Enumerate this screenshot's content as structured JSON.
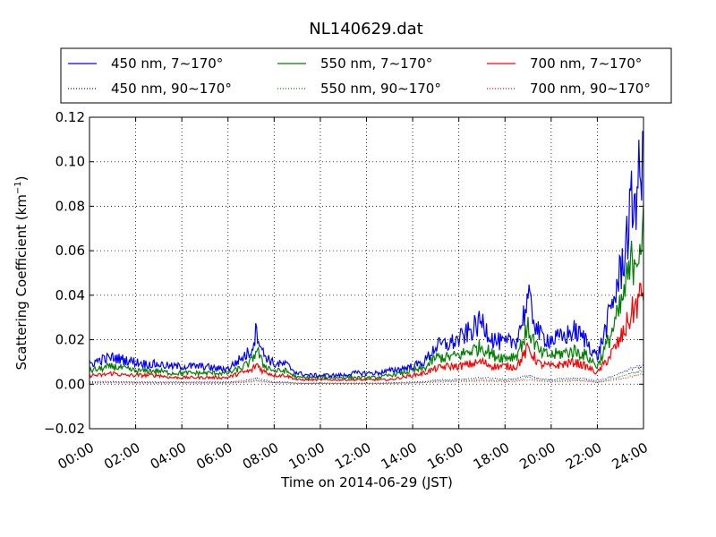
{
  "chart_data": {
    "type": "line",
    "title": "NL140629.dat",
    "xlabel": "Time on 2014-06-29 (JST)",
    "ylabel": "Scattering Coefficient (km",
    "ylabel_exp": "−1",
    "ylabel_close": ")",
    "xlim": [
      "00:00",
      "24:00"
    ],
    "ylim": [
      -0.02,
      0.12
    ],
    "grid": true,
    "legend_position": "top",
    "x_ticks": [
      "00:00",
      "02:00",
      "04:00",
      "06:00",
      "08:00",
      "10:00",
      "12:00",
      "14:00",
      "16:00",
      "18:00",
      "20:00",
      "22:00",
      "24:00"
    ],
    "y_ticks": [
      "−0.02",
      "0.00",
      "0.02",
      "0.04",
      "0.06",
      "0.08",
      "0.10",
      "0.12"
    ],
    "x_hours": [
      0,
      0.5,
      1,
      1.5,
      2,
      2.5,
      3,
      3.5,
      4,
      4.5,
      5,
      5.5,
      6,
      6.5,
      7,
      7.25,
      7.5,
      8,
      8.5,
      9,
      9.5,
      10,
      10.5,
      11,
      11.5,
      12,
      12.5,
      13,
      13.5,
      14,
      14.5,
      15,
      15.5,
      16,
      16.5,
      17,
      17.5,
      18,
      18.5,
      19,
      19.5,
      20,
      20.5,
      21,
      21.5,
      22,
      22.5,
      23,
      23.5,
      24
    ],
    "series": [
      {
        "name": "450 nm, 7∼170°",
        "color": "#0000ff",
        "style": "solid",
        "values": [
          0.009,
          0.011,
          0.012,
          0.011,
          0.01,
          0.009,
          0.009,
          0.008,
          0.008,
          0.008,
          0.008,
          0.007,
          0.007,
          0.011,
          0.015,
          0.025,
          0.014,
          0.009,
          0.009,
          0.005,
          0.004,
          0.004,
          0.004,
          0.004,
          0.005,
          0.005,
          0.005,
          0.006,
          0.007,
          0.008,
          0.01,
          0.017,
          0.018,
          0.02,
          0.024,
          0.028,
          0.02,
          0.018,
          0.02,
          0.038,
          0.022,
          0.02,
          0.021,
          0.024,
          0.02,
          0.012,
          0.03,
          0.05,
          0.08,
          0.098
        ]
      },
      {
        "name": "550 nm, 7∼170°",
        "color": "#008000",
        "style": "solid",
        "values": [
          0.006,
          0.007,
          0.008,
          0.007,
          0.006,
          0.006,
          0.006,
          0.005,
          0.005,
          0.005,
          0.005,
          0.005,
          0.005,
          0.007,
          0.01,
          0.016,
          0.009,
          0.006,
          0.006,
          0.003,
          0.003,
          0.003,
          0.003,
          0.003,
          0.003,
          0.003,
          0.003,
          0.004,
          0.005,
          0.006,
          0.007,
          0.012,
          0.012,
          0.013,
          0.015,
          0.017,
          0.013,
          0.012,
          0.013,
          0.025,
          0.014,
          0.013,
          0.014,
          0.015,
          0.013,
          0.008,
          0.02,
          0.034,
          0.055,
          0.068
        ]
      },
      {
        "name": "700 nm, 7∼170°",
        "color": "#ff0000",
        "style": "solid",
        "values": [
          0.004,
          0.004,
          0.005,
          0.004,
          0.004,
          0.004,
          0.004,
          0.003,
          0.003,
          0.003,
          0.003,
          0.003,
          0.003,
          0.005,
          0.006,
          0.009,
          0.006,
          0.004,
          0.004,
          0.002,
          0.002,
          0.002,
          0.002,
          0.002,
          0.002,
          0.002,
          0.002,
          0.002,
          0.003,
          0.004,
          0.005,
          0.007,
          0.008,
          0.008,
          0.009,
          0.01,
          0.008,
          0.008,
          0.008,
          0.016,
          0.009,
          0.008,
          0.009,
          0.01,
          0.008,
          0.005,
          0.012,
          0.02,
          0.032,
          0.042
        ]
      },
      {
        "name": "450 nm, 90∼170°",
        "color": "#0000ff",
        "style": "dotted",
        "values": [
          0.001,
          0.0012,
          0.0012,
          0.0011,
          0.001,
          0.001,
          0.001,
          0.001,
          0.001,
          0.001,
          0.001,
          0.001,
          0.001,
          0.0015,
          0.002,
          0.003,
          0.002,
          0.001,
          0.001,
          0.0005,
          0.0005,
          0.0005,
          0.0005,
          0.0005,
          0.0005,
          0.0005,
          0.0005,
          0.0006,
          0.0008,
          0.001,
          0.0012,
          0.002,
          0.002,
          0.0022,
          0.0025,
          0.003,
          0.0025,
          0.0022,
          0.0025,
          0.004,
          0.0025,
          0.0022,
          0.0025,
          0.0028,
          0.0025,
          0.0015,
          0.003,
          0.005,
          0.007,
          0.008
        ]
      },
      {
        "name": "550 nm, 90∼170°",
        "color": "#008000",
        "style": "dotted",
        "values": [
          0.0007,
          0.0008,
          0.0009,
          0.0008,
          0.0007,
          0.0007,
          0.0007,
          0.0007,
          0.0007,
          0.0007,
          0.0007,
          0.0007,
          0.0007,
          0.001,
          0.0014,
          0.002,
          0.0014,
          0.0008,
          0.0008,
          0.0004,
          0.0004,
          0.0004,
          0.0004,
          0.0004,
          0.0004,
          0.0004,
          0.0004,
          0.0005,
          0.0006,
          0.0007,
          0.0009,
          0.0015,
          0.0015,
          0.0016,
          0.0018,
          0.002,
          0.0018,
          0.0016,
          0.0018,
          0.003,
          0.0018,
          0.0016,
          0.0018,
          0.002,
          0.0018,
          0.001,
          0.0022,
          0.0035,
          0.005,
          0.006
        ]
      },
      {
        "name": "700 nm, 90∼170°",
        "color": "#ff0000",
        "style": "dotted",
        "values": [
          0.0005,
          0.0006,
          0.0006,
          0.0006,
          0.0005,
          0.0005,
          0.0005,
          0.0005,
          0.0005,
          0.0005,
          0.0005,
          0.0005,
          0.0005,
          0.0007,
          0.001,
          0.0014,
          0.001,
          0.0006,
          0.0006,
          0.0003,
          0.0003,
          0.0003,
          0.0003,
          0.0003,
          0.0003,
          0.0003,
          0.0003,
          0.0004,
          0.0005,
          0.0005,
          0.0007,
          0.001,
          0.0011,
          0.0012,
          0.0013,
          0.0015,
          0.0013,
          0.0012,
          0.0013,
          0.002,
          0.0013,
          0.0012,
          0.0013,
          0.0015,
          0.0013,
          0.0008,
          0.0016,
          0.0025,
          0.0035,
          0.0045
        ]
      }
    ]
  }
}
